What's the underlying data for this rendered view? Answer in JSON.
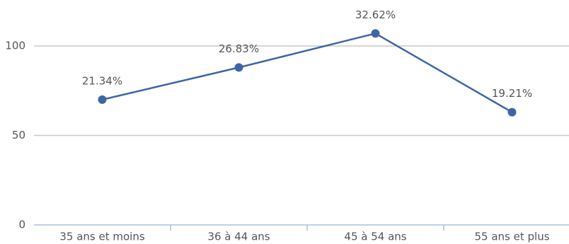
{
  "chart_data": {
    "type": "line",
    "categories": [
      "35 ans et moins",
      "36 à 44 ans",
      "45 à 54 ans",
      "55 ans et plus"
    ],
    "series": [
      {
        "color": "#3e66a6",
        "values": [
          70,
          88,
          107,
          63
        ],
        "point_labels": [
          "21.34%",
          "26.83%",
          "32.62%",
          "19.21%"
        ]
      }
    ],
    "ylim": [
      0,
      100
    ],
    "yticks": [
      0,
      50,
      100
    ],
    "grid": true
  }
}
